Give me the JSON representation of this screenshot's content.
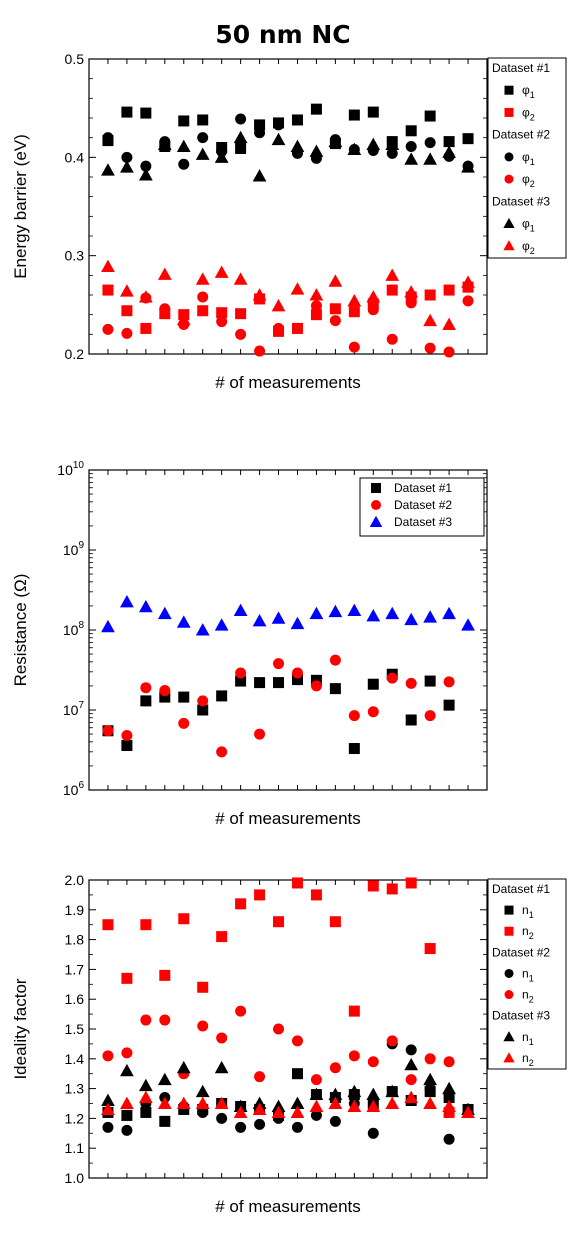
{
  "title": "50 nm NC",
  "colors": {
    "black": "#000000",
    "red": "#ff0000",
    "blue": "#0000ff"
  },
  "chart_data": [
    {
      "type": "scatter",
      "xlabel": "# of measurements",
      "ylabel": "Energy barrier (eV)",
      "ylim": [
        0.2,
        0.5
      ],
      "yticks": [
        "0.2",
        "0.3",
        "0.4",
        "0.5"
      ],
      "grid": false,
      "legend": "right",
      "legend_groups": [
        {
          "label": "Dataset #1",
          "entries": [
            {
              "base": "φ",
              "sub": "1"
            },
            {
              "base": "φ",
              "sub": "2"
            }
          ]
        },
        {
          "label": "Dataset #2",
          "entries": [
            {
              "base": "φ",
              "sub": "1"
            },
            {
              "base": "φ",
              "sub": "2"
            }
          ]
        },
        {
          "label": "Dataset #3",
          "entries": [
            {
              "base": "φ",
              "sub": "1"
            },
            {
              "base": "φ",
              "sub": "2"
            }
          ]
        }
      ],
      "series": [
        {
          "marker": "square",
          "color": "black",
          "x": [
            1,
            2,
            3,
            4,
            5,
            6,
            7,
            8,
            9,
            10,
            11,
            12,
            13,
            14,
            15,
            16,
            17,
            18,
            19,
            20
          ],
          "y": [
            0.417,
            0.446,
            0.445,
            0.411,
            0.437,
            0.438,
            0.41,
            0.409,
            0.433,
            0.435,
            0.438,
            0.449,
            0.414,
            0.443,
            0.446,
            0.416,
            0.427,
            0.442,
            0.416,
            0.419
          ]
        },
        {
          "marker": "square",
          "color": "red",
          "x": [
            1,
            2,
            3,
            4,
            5,
            6,
            7,
            8,
            9,
            10,
            11,
            12,
            13,
            14,
            15,
            16,
            17,
            18,
            19,
            20
          ],
          "y": [
            0.265,
            0.244,
            0.226,
            0.241,
            0.24,
            0.244,
            0.242,
            0.241,
            0.256,
            0.223,
            0.226,
            0.24,
            0.246,
            0.243,
            0.251,
            0.265,
            0.258,
            0.26,
            0.265,
            0.268
          ]
        },
        {
          "marker": "circle",
          "color": "black",
          "x": [
            1,
            2,
            3,
            4,
            5,
            6,
            7,
            8,
            9,
            10,
            11,
            12,
            13,
            14,
            15,
            16,
            17,
            18,
            19,
            20
          ],
          "y": [
            0.42,
            0.4,
            0.391,
            0.416,
            0.393,
            0.42,
            0.406,
            0.439,
            0.425,
            0.433,
            0.404,
            0.399,
            0.418,
            0.408,
            0.407,
            0.404,
            0.411,
            0.415,
            0.401,
            0.391
          ]
        },
        {
          "marker": "circle",
          "color": "red",
          "x": [
            1,
            2,
            3,
            4,
            5,
            6,
            7,
            8,
            9,
            10,
            11,
            12,
            13,
            14,
            15,
            16,
            17,
            18,
            19,
            20
          ],
          "y": [
            0.225,
            0.221,
            0.257,
            0.246,
            0.23,
            0.258,
            0.233,
            0.22,
            0.203,
            0.226,
            0.226,
            0.249,
            0.234,
            0.207,
            0.245,
            0.215,
            0.252,
            0.206,
            0.202,
            0.254
          ]
        },
        {
          "marker": "triangle",
          "color": "black",
          "x": [
            1,
            2,
            3,
            4,
            5,
            6,
            7,
            8,
            9,
            10,
            11,
            12,
            13,
            14,
            15,
            16,
            17,
            18,
            19,
            20
          ],
          "y": [
            0.387,
            0.39,
            0.382,
            0.413,
            0.411,
            0.403,
            0.4,
            0.42,
            0.381,
            0.418,
            0.411,
            0.406,
            0.416,
            0.408,
            0.413,
            0.413,
            0.398,
            0.398,
            0.405,
            0.39
          ]
        },
        {
          "marker": "triangle",
          "color": "red",
          "x": [
            1,
            2,
            3,
            4,
            5,
            6,
            7,
            8,
            9,
            10,
            11,
            12,
            13,
            14,
            15,
            16,
            17,
            18,
            19,
            20
          ],
          "y": [
            0.289,
            0.264,
            0.258,
            0.281,
            0.235,
            0.276,
            0.283,
            0.276,
            0.26,
            0.249,
            0.266,
            0.26,
            0.274,
            0.254,
            0.258,
            0.28,
            0.263,
            0.234,
            0.23,
            0.273
          ]
        }
      ]
    },
    {
      "type": "scatter",
      "xlabel": "# of measurements",
      "ylabel": "Resistance (Ω)",
      "yscale": "log",
      "ylim": [
        1000000,
        10000000000
      ],
      "yticks": [
        {
          "base": "10",
          "exp": "6"
        },
        {
          "base": "10",
          "exp": "7"
        },
        {
          "base": "10",
          "exp": "8"
        },
        {
          "base": "10",
          "exp": "9"
        },
        {
          "base": "10",
          "exp": "10"
        }
      ],
      "grid": false,
      "legend": "top-right",
      "series": [
        {
          "name": "Dataset #1",
          "marker": "square",
          "color": "black",
          "x": [
            1,
            2,
            3,
            4,
            5,
            6,
            7,
            8,
            9,
            10,
            11,
            12,
            13,
            14,
            15,
            16,
            17,
            18,
            19
          ],
          "y": [
            5500000,
            3600000,
            13000000,
            14500000,
            14500000,
            10000000,
            15000000,
            23000000,
            22000000,
            22000000,
            24000000,
            23500000,
            18500000,
            3300000,
            21000000,
            28000000,
            7500000,
            23000000,
            11500000
          ]
        },
        {
          "name": "Dataset #2",
          "marker": "circle",
          "color": "red",
          "x": [
            1,
            2,
            3,
            4,
            5,
            6,
            7,
            8,
            9,
            10,
            11,
            12,
            13,
            14,
            15,
            16,
            17,
            18,
            19
          ],
          "y": [
            5500000,
            4800000,
            19000000,
            17500000,
            6800000,
            13000000,
            3000000,
            29000000,
            5000000,
            38000000,
            29000000,
            20000000,
            42000000,
            8500000,
            9500000,
            25000000,
            21500000,
            8500000,
            22500000
          ]
        },
        {
          "name": "Dataset #3",
          "marker": "triangle",
          "color": "blue",
          "x": [
            1,
            2,
            3,
            4,
            5,
            6,
            7,
            8,
            9,
            10,
            11,
            12,
            13,
            14,
            15,
            16,
            17,
            18,
            19,
            20
          ],
          "y": [
            110000000,
            225000000,
            195000000,
            160000000,
            125000000,
            100000000,
            115000000,
            175000000,
            130000000,
            140000000,
            120000000,
            160000000,
            170000000,
            175000000,
            150000000,
            160000000,
            135000000,
            145000000,
            160000000,
            115000000
          ]
        }
      ]
    },
    {
      "type": "scatter",
      "xlabel": "# of measurements",
      "ylabel": "Ideality factor",
      "ylim": [
        1.0,
        2.0
      ],
      "yticks": [
        "1.0",
        "1.1",
        "1.2",
        "1.3",
        "1.4",
        "1.5",
        "1.6",
        "1.7",
        "1.8",
        "1.9",
        "2.0"
      ],
      "grid": false,
      "legend": "right",
      "legend_groups": [
        {
          "label": "Dataset #1",
          "entries": [
            {
              "base": "n",
              "sub": "1"
            },
            {
              "base": "n",
              "sub": "2"
            }
          ]
        },
        {
          "label": "Dataset #2",
          "entries": [
            {
              "base": "n",
              "sub": "1"
            },
            {
              "base": "n",
              "sub": "2"
            }
          ]
        },
        {
          "label": "Dataset #3",
          "entries": [
            {
              "base": "n",
              "sub": "1"
            },
            {
              "base": "n",
              "sub": "2"
            }
          ]
        }
      ],
      "series": [
        {
          "marker": "square",
          "color": "black",
          "x": [
            1,
            2,
            3,
            4,
            5,
            6,
            7,
            8,
            9,
            10,
            11,
            12,
            13,
            14,
            15,
            16,
            17,
            18,
            19,
            20
          ],
          "y": [
            1.22,
            1.21,
            1.22,
            1.19,
            1.23,
            1.23,
            1.25,
            1.24,
            1.23,
            1.21,
            1.35,
            1.28,
            1.27,
            1.28,
            1.25,
            1.29,
            1.26,
            1.29,
            1.27,
            1.23
          ]
        },
        {
          "marker": "square",
          "color": "red",
          "x": [
            1,
            2,
            3,
            4,
            5,
            6,
            7,
            8,
            9,
            10,
            11,
            12,
            13,
            14,
            15,
            16,
            17,
            18,
            19
          ],
          "y": [
            1.85,
            1.67,
            1.85,
            1.68,
            1.87,
            1.64,
            1.81,
            1.92,
            1.95,
            1.86,
            1.99,
            1.95,
            1.86,
            1.56,
            1.98,
            1.97,
            1.99,
            1.77,
            1.22
          ]
        },
        {
          "marker": "circle",
          "color": "black",
          "x": [
            1,
            2,
            3,
            4,
            5,
            6,
            7,
            8,
            9,
            10,
            11,
            12,
            13,
            14,
            15,
            16,
            17,
            18,
            19
          ],
          "y": [
            1.17,
            1.16,
            1.25,
            1.27,
            1.24,
            1.22,
            1.2,
            1.17,
            1.18,
            1.2,
            1.17,
            1.21,
            1.19,
            1.25,
            1.15,
            1.45,
            1.43,
            1.3,
            1.13
          ]
        },
        {
          "marker": "circle",
          "color": "red",
          "x": [
            1,
            2,
            3,
            4,
            5,
            6,
            7,
            8,
            9,
            10,
            11,
            12,
            13,
            14,
            15,
            16,
            17,
            18,
            19
          ],
          "y": [
            1.41,
            1.42,
            1.53,
            1.53,
            1.35,
            1.51,
            1.47,
            1.56,
            1.34,
            1.5,
            1.46,
            1.33,
            1.37,
            1.41,
            1.39,
            1.46,
            1.33,
            1.4,
            1.39
          ]
        },
        {
          "marker": "triangle",
          "color": "black",
          "x": [
            1,
            2,
            3,
            4,
            5,
            6,
            7,
            8,
            9,
            10,
            11,
            12,
            13,
            14,
            15,
            16,
            17,
            18,
            19,
            20
          ],
          "y": [
            1.26,
            1.36,
            1.31,
            1.33,
            1.37,
            1.29,
            1.37,
            1.24,
            1.25,
            1.24,
            1.25,
            1.28,
            1.28,
            1.29,
            1.28,
            1.29,
            1.38,
            1.33,
            1.3,
            1.23
          ]
        },
        {
          "marker": "triangle",
          "color": "red",
          "x": [
            1,
            2,
            3,
            4,
            5,
            6,
            7,
            8,
            9,
            10,
            11,
            12,
            13,
            14,
            15,
            16,
            17,
            18,
            19,
            20
          ],
          "y": [
            1.23,
            1.25,
            1.27,
            1.25,
            1.25,
            1.25,
            1.25,
            1.22,
            1.23,
            1.22,
            1.22,
            1.24,
            1.25,
            1.24,
            1.24,
            1.25,
            1.27,
            1.25,
            1.24,
            1.22
          ]
        }
      ]
    }
  ]
}
